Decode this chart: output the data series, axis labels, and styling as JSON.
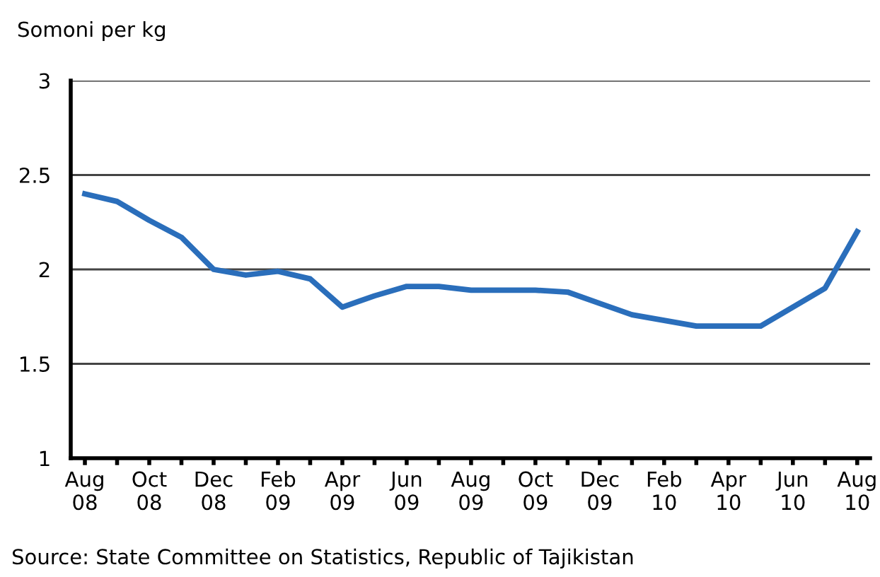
{
  "chart_data": {
    "type": "line",
    "ylabel": "Somoni per kg",
    "categories": [
      "Aug\n08",
      null,
      "Oct\n08",
      null,
      "Dec\n08",
      null,
      "Feb\n09",
      null,
      "Apr\n09",
      null,
      "Jun\n09",
      null,
      "Aug\n09",
      null,
      "Oct\n09",
      null,
      "Dec\n09",
      null,
      "Feb\n10",
      null,
      "Apr\n10",
      null,
      "Jun\n10",
      null,
      "Aug\n10"
    ],
    "series": [
      {
        "color": "#2a6ebb",
        "values": [
          2.4,
          2.36,
          2.26,
          2.17,
          2.0,
          1.97,
          1.99,
          1.95,
          1.8,
          1.86,
          1.91,
          1.91,
          1.89,
          1.89,
          1.89,
          1.88,
          1.82,
          1.76,
          1.73,
          1.7,
          1.7,
          1.7,
          1.8,
          1.9,
          2.2
        ]
      }
    ],
    "ylim": [
      1,
      3
    ],
    "yticks": [
      1,
      1.5,
      2,
      2.5,
      3
    ],
    "grid": "y",
    "marker": "none",
    "line_style": "solid",
    "annotations": [
      "Source: State Committee on Statistics, Republic of Tajikistan"
    ]
  }
}
